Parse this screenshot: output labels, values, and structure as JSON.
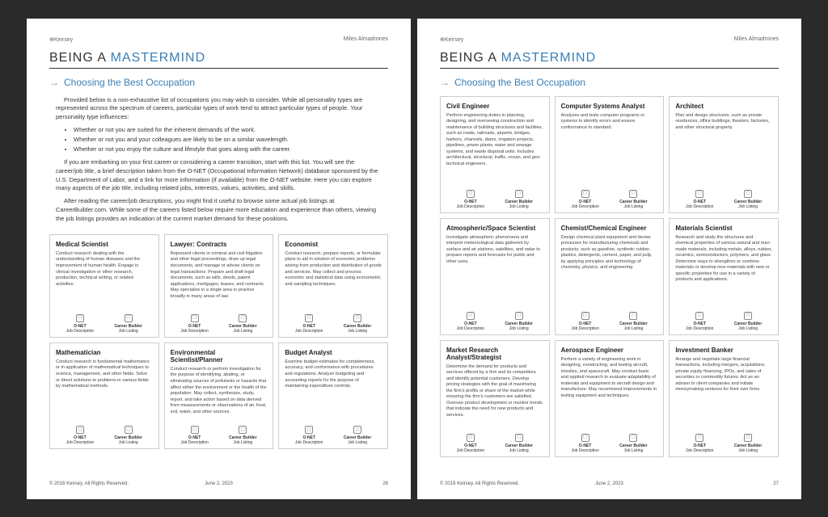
{
  "brand": "⊕Keirsey",
  "user_name": "Miles Almadrones",
  "being_prefix": "BEING A ",
  "being_word": "MASTERMIND",
  "section": "Choosing the Best Occupation",
  "intro_p1": "Provided below is a non-exhaustive list of occupations you may wish to consider. While all personality types are represented across the spectrum of careers, particular types of work tend to attract particular types of people. Your personality type influences:",
  "bullets": [
    "Whether or not you are suited for the inherent demands of the work.",
    "Whether or not you and your colleagues are likely to be on a similar wavelength.",
    "Whether or not you enjoy the culture and lifestyle that goes along with the career."
  ],
  "intro_p2": "If you are embarking on your first career or considering a career transition, start with this list. You will see the career/job title, a brief description taken from the O-NET (Occupational Information Network) database sponsored by the U.S. Department of Labor, and a link for more information (if available) from the O-NET website. Here you can explore many aspects of the job title, including related jobs, interests, values, activities, and skills.",
  "intro_p3": "After reading the career/job descriptions, you might find it useful to browse some actual job listings at CareerBuilder.com. While some of the careers listed below require more education and experience than others, viewing the job listings provides an indication of the current market demand for these positions.",
  "link_onet_l1": "O-NET",
  "link_onet_l2": "Job Description",
  "link_cb_l1": "Career Builder",
  "link_cb_l2": "Job Listing",
  "page1_cards": [
    {
      "title": "Medical Scientist",
      "desc": "Conduct research dealing with the understanding of human diseases and the improvement of human health. Engage in clinical investigation or other research, production, technical writing, or related activities."
    },
    {
      "title": "Lawyer: Contracts",
      "desc": "Represent clients in criminal and civil litigation and other legal proceedings, draw up legal documents, and manage or advise clients on legal transactions. Prepare and draft legal documents, such as wills, deeds, patent applications, mortgages, leases, and contracts. May specialize in a single area or practice broadly in many areas of law."
    },
    {
      "title": "Economist",
      "desc": "Conduct research, prepare reports, or formulate plans to aid in solution of economic problems arising from production and distribution of goods and services. May collect and process economic and statistical data using econometric and sampling techniques."
    },
    {
      "title": "Mathematician",
      "desc": "Conduct research in fundamental mathematics or in application of mathematical techniques to science, management, and other fields. Solve or direct solutions to problems in various fields by mathematical methods."
    },
    {
      "title": "Environmental Scientist/Planner",
      "desc": "Conduct research or perform investigation for the purpose of identifying, abating, or eliminating sources of pollutants or hazards that affect either the environment or the health of the population. May collect, synthesize, study, report, and take action based on data derived from measurements or observations of air, food, soil, water, and other sources."
    },
    {
      "title": "Budget Analyst",
      "desc": "Examine budget estimates for completeness, accuracy, and conformance with procedures and regulations. Analyze budgeting and accounting reports for the purpose of maintaining expenditure controls."
    }
  ],
  "page2_cards": [
    {
      "title": "Civil Engineer",
      "desc": "Perform engineering duties in planning, designing, and overseeing construction and maintenance of building structures and facilities, such as roads, railroads, airports, bridges, harbors, channels, dams, irrigation projects, pipelines, power plants, water and sewage systems, and waste disposal units. Includes architectural, structural, traffic, ocean, and geo-technical engineers."
    },
    {
      "title": "Computer Systems Analyst",
      "desc": "Analyzes and tests computer programs or systems to identify errors and ensure conformance to standard."
    },
    {
      "title": "Architect",
      "desc": "Plan and design structures, such as private residences, office buildings, theaters, factories, and other structural property."
    },
    {
      "title": "Atmospheric/Space Scientist",
      "desc": "Investigate atmospheric phenomena and interpret meteorological data gathered by surface and air stations, satellites, and radar to prepare reports and forecasts for public and other uses."
    },
    {
      "title": "Chemist/Chemical Engineer",
      "desc": "Design chemical plant equipment and devise processes for manufacturing chemicals and products, such as gasoline, synthetic rubber, plastics, detergents, cement, paper, and pulp, by applying principles and technology of chemistry, physics, and engineering."
    },
    {
      "title": "Materials Scientist",
      "desc": "Research and study the structures and chemical properties of various natural and man-made materials, including metals, alloys, rubber, ceramics, semiconductors, polymers, and glass. Determine ways to strengthen or combine materials or develop new materials with new or specific properties for use in a variety of products and applications."
    },
    {
      "title": "Market Research Analyst/Strategist",
      "desc": "Determine the demand for products and services offered by a firm and its competitors and identify potential customers. Develop pricing strategies with the goal of maximizing the firm's profits or share of the market while ensuring the firm's customers are satisfied. Oversee product development or monitor trends that indicate the need for new products and services."
    },
    {
      "title": "Aerospace Engineer",
      "desc": "Perform a variety of engineering work in designing, constructing, and testing aircraft, missiles, and spacecraft. May conduct basic and applied research to evaluate adaptability of materials and equipment to aircraft design and manufacture. May recommend improvements in testing equipment and techniques."
    },
    {
      "title": "Investment Banker",
      "desc": "Arrange and negotiate large financial transactions, including mergers, acquisitions, private equity financing, IPOs, and sales of securities or commodity futures. Act as an adviser to client companies and initiate moneymaking ventures for their own firms."
    }
  ],
  "copyright": "© 2016 Keirsey. All Rights Reserved.",
  "date": "June 2, 2023",
  "pnum1": "26",
  "pnum2": "27",
  "colors": {
    "accent": "#3b7fb5"
  }
}
